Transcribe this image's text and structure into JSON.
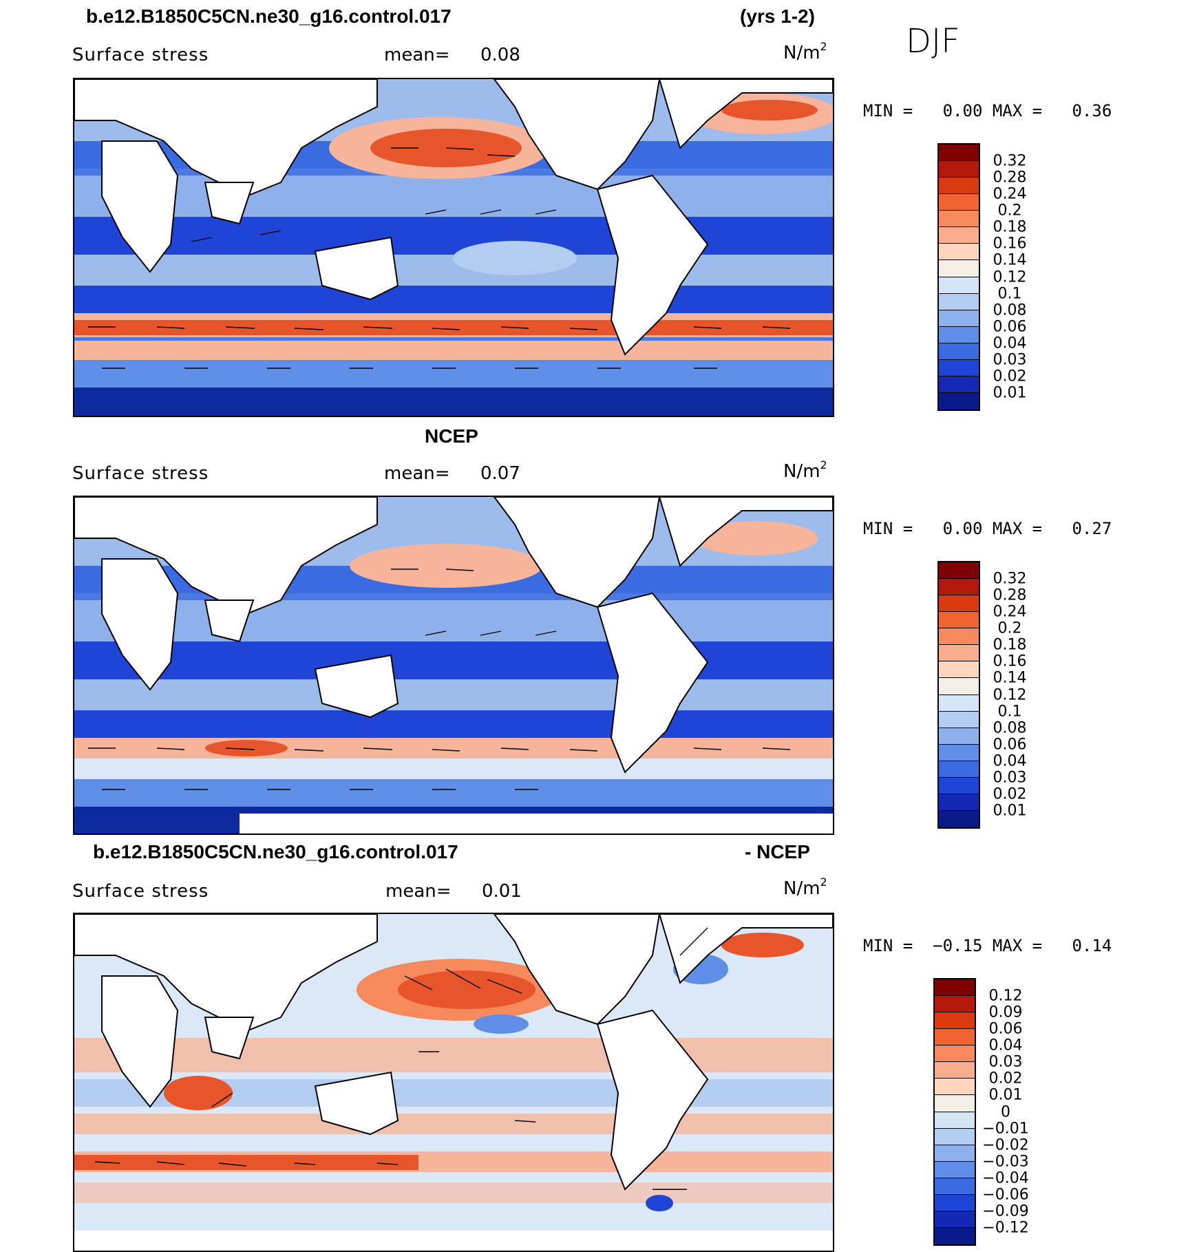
{
  "header": {
    "case_name": "b.e12.B1850C5CN.ne30_g16.control.017",
    "years": "(yrs 1-2)",
    "season": "DJF"
  },
  "panels": [
    {
      "id": "model",
      "title": "",
      "variable_label": "Surface stress",
      "mean_label": "mean=",
      "mean_value": "0.08",
      "units": "N/m",
      "units_sup": "2",
      "min_label": "MIN =",
      "min_value": "0.00",
      "max_label": "MAX =",
      "max_value": "0.36",
      "colorbar": {
        "colors": [
          "#7f0000",
          "#b3190a",
          "#d93a10",
          "#f06432",
          "#f78a5c",
          "#f9ad8d",
          "#fdd5bd",
          "#f4eee6",
          "#d3e5f7",
          "#b3cdf1",
          "#8eb1ec",
          "#5e8ee6",
          "#3b6be0",
          "#1f45d6",
          "#1329b3",
          "#0a1a8a"
        ],
        "ticks": [
          "0.32",
          "0.28",
          "0.24",
          "0.2",
          "0.18",
          "0.16",
          "0.14",
          "0.12",
          "0.1",
          "0.08",
          "0.06",
          "0.04",
          "0.03",
          "0.02",
          "0.01"
        ]
      }
    },
    {
      "id": "obs",
      "title": "NCEP",
      "variable_label": "Surface stress",
      "mean_label": "mean=",
      "mean_value": "0.07",
      "units": "N/m",
      "units_sup": "2",
      "min_label": "MIN =",
      "min_value": "0.00",
      "max_label": "MAX =",
      "max_value": "0.27",
      "colorbar": {
        "colors": [
          "#7f0000",
          "#b3190a",
          "#d93a10",
          "#f06432",
          "#f78a5c",
          "#f9ad8d",
          "#fdd5bd",
          "#f4eee6",
          "#d3e5f7",
          "#b3cdf1",
          "#8eb1ec",
          "#5e8ee6",
          "#3b6be0",
          "#1f45d6",
          "#1329b3",
          "#0a1a8a"
        ],
        "ticks": [
          "0.32",
          "0.28",
          "0.24",
          "0.2",
          "0.18",
          "0.16",
          "0.14",
          "0.12",
          "0.1",
          "0.08",
          "0.06",
          "0.04",
          "0.03",
          "0.02",
          "0.01"
        ]
      }
    },
    {
      "id": "diff",
      "title_left": "b.e12.B1850C5CN.ne30_g16.control.017",
      "title_right": "- NCEP",
      "variable_label": "Surface stress",
      "mean_label": "mean=",
      "mean_value": "0.01",
      "units": "N/m",
      "units_sup": "2",
      "min_label": "MIN =",
      "min_value": "−0.15",
      "max_label": "MAX =",
      "max_value": "0.14",
      "colorbar": {
        "colors": [
          "#7f0000",
          "#b3190a",
          "#d93a10",
          "#f06432",
          "#f78a5c",
          "#f9ad8d",
          "#fdd5bd",
          "#f4eee6",
          "#d3e5f7",
          "#b3cdf1",
          "#8eb1ec",
          "#5e8ee6",
          "#3b6be0",
          "#1f45d6",
          "#1329b3",
          "#0a1a8a"
        ],
        "ticks": [
          "0.12",
          "0.09",
          "0.06",
          "0.04",
          "0.03",
          "0.02",
          "0.01",
          "0",
          "−0.01",
          "−0.02",
          "−0.03",
          "−0.04",
          "−0.06",
          "−0.09",
          "−0.12"
        ]
      }
    }
  ],
  "colors": {
    "red": "#e8552b",
    "salmon": "#f6b59a",
    "pale": "#dbe8f7",
    "light_blue": "#9dbcec",
    "mid_blue": "#4a79e3",
    "dark_blue": "#0d2a9e",
    "land": "#ffffff"
  }
}
